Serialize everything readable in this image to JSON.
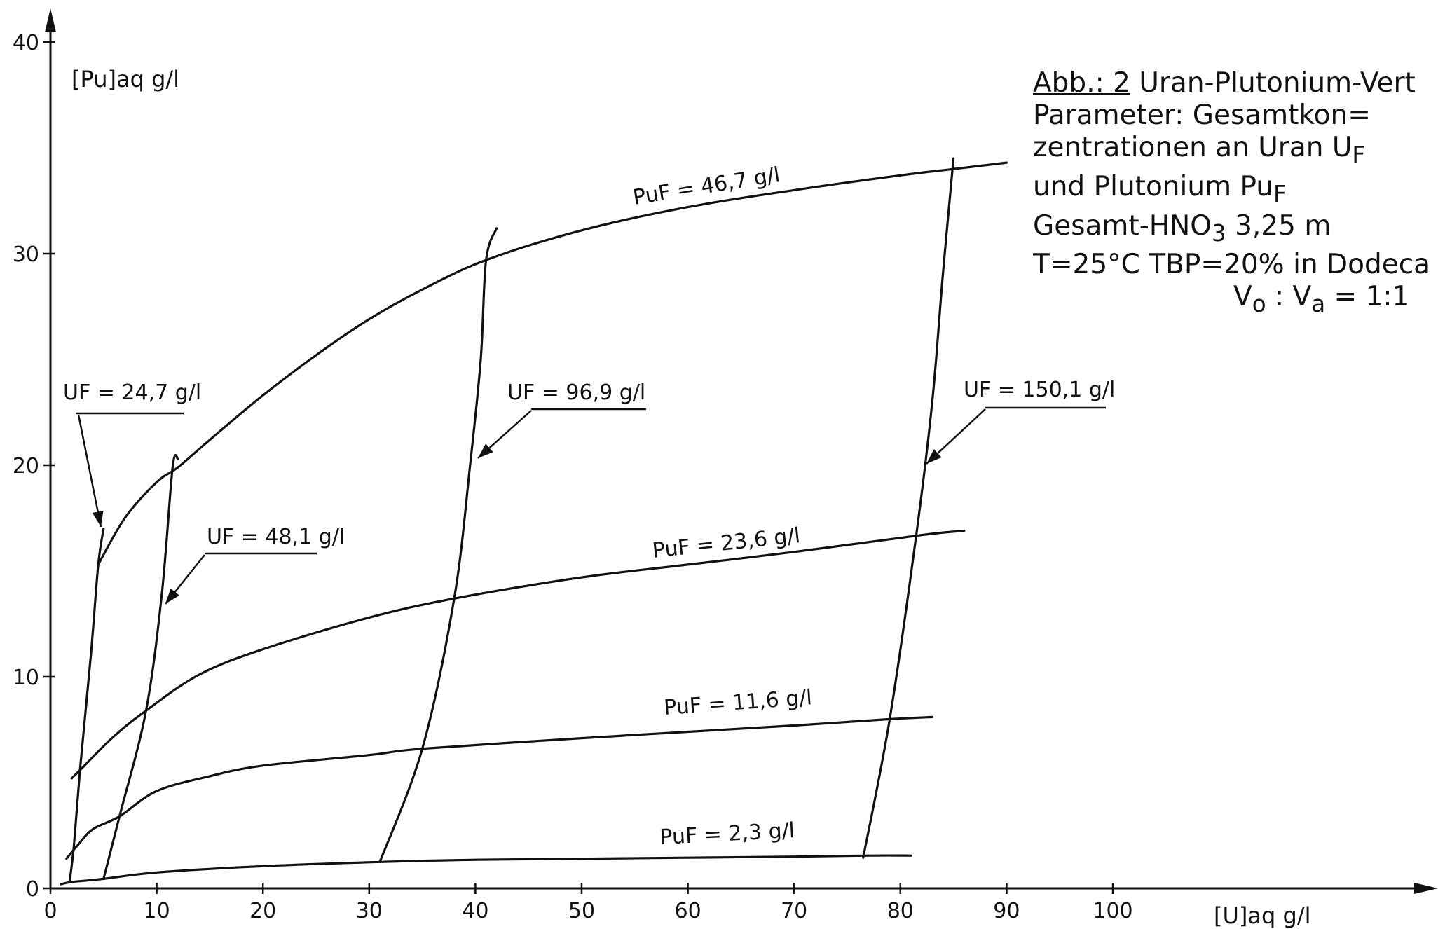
{
  "chart_data": {
    "type": "line",
    "xlabel": "[U]aq g/l",
    "ylabel": "[Pu]aq g/l",
    "xlim": [
      0,
      130
    ],
    "ylim": [
      0,
      40
    ],
    "x_ticks": [
      "0",
      "10",
      "20",
      "30",
      "40",
      "50",
      "60",
      "70",
      "80",
      "90",
      "100"
    ],
    "y_ticks": [
      "0",
      "10",
      "20",
      "30",
      "40"
    ],
    "grid": false,
    "series": [
      {
        "name": "Pu_F = 46,7 g/l",
        "label": "PuF = 46,7 g/l",
        "x": [
          4.5,
          7,
          10,
          12,
          15,
          20,
          25,
          30,
          35,
          41,
          50,
          60,
          70,
          80,
          85,
          90
        ],
        "y": [
          15.3,
          17.5,
          19.2,
          19.9,
          21.2,
          23.3,
          25.2,
          26.9,
          28.3,
          29.7,
          31.1,
          32.2,
          33.0,
          33.7,
          34.0,
          34.3
        ]
      },
      {
        "name": "Pu_F = 23,6 g/l",
        "label": "PuF = 23,6 g/l",
        "x": [
          2,
          3,
          6,
          9,
          14,
          20,
          30,
          38,
          50,
          60,
          70,
          82,
          86
        ],
        "y": [
          5.2,
          5.7,
          7.2,
          8.4,
          10.1,
          11.3,
          12.8,
          13.7,
          14.7,
          15.3,
          15.9,
          16.7,
          16.9
        ]
      },
      {
        "name": "Pu_F = 11,6 g/l",
        "label": "PuF = 11,6 g/l",
        "x": [
          1.5,
          2.5,
          4,
          6.5,
          10,
          15,
          20,
          30,
          35,
          50,
          60,
          70,
          79,
          83
        ],
        "y": [
          1.4,
          2.0,
          2.8,
          3.4,
          4.6,
          5.3,
          5.8,
          6.3,
          6.6,
          7.1,
          7.4,
          7.7,
          8.0,
          8.1
        ]
      },
      {
        "name": "Pu_F = 2,3 g/l",
        "label": "PuF = 2,3 g/l",
        "x": [
          1,
          2,
          5,
          10,
          20,
          31,
          40,
          50,
          60,
          70,
          77,
          81
        ],
        "y": [
          0.2,
          0.3,
          0.45,
          0.75,
          1.05,
          1.25,
          1.35,
          1.4,
          1.45,
          1.5,
          1.55,
          1.55
        ]
      },
      {
        "name": "U_F = 24,7 g/l",
        "label": "UF = 24,7 g/l",
        "x": [
          1.8,
          2.2,
          2.8,
          3.8,
          4.5,
          5
        ],
        "y": [
          0.3,
          2.0,
          5.7,
          11.0,
          15.3,
          17.0
        ]
      },
      {
        "name": "U_F = 48,1 g/l",
        "label": "UF = 48,1 g/l",
        "x": [
          5,
          6.5,
          9,
          10.5,
          11.5,
          12
        ],
        "y": [
          0.45,
          3.4,
          8.4,
          14.0,
          19.9,
          20.3
        ]
      },
      {
        "name": "U_F = 96,9 g/l",
        "label": "UF = 96,9 g/l",
        "x": [
          31,
          35,
          38,
          39.5,
          40.5,
          41,
          42
        ],
        "y": [
          1.25,
          6.6,
          13.7,
          20.0,
          25.0,
          29.7,
          31.2
        ]
      },
      {
        "name": "U_F = 150,1 g/l",
        "label": "UF = 150,1 g/l",
        "x": [
          76.5,
          79,
          81.5,
          83,
          84,
          85
        ],
        "y": [
          1.45,
          8.0,
          16.7,
          23.0,
          29.0,
          34.5
        ]
      }
    ]
  },
  "caption": {
    "title": "Abb.: 2",
    "title_rest": " Uran-Plutonium-Vert",
    "line2": "Parameter: Gesamtkon=",
    "line3": "zentrationen an Uran U",
    "line3_sub": "F",
    "line4": "und Plutonium Pu",
    "line4_sub": "F",
    "line5": "Gesamt-HNO",
    "line5_sub": "3",
    "line5_rest": " 3,25 m",
    "line6": "T=25°C  TBP=20% in Dodeca",
    "line7a": "V",
    "line7a_sub": "o",
    "line7b": " : V",
    "line7b_sub": "a",
    "line7c": " = 1:1"
  }
}
